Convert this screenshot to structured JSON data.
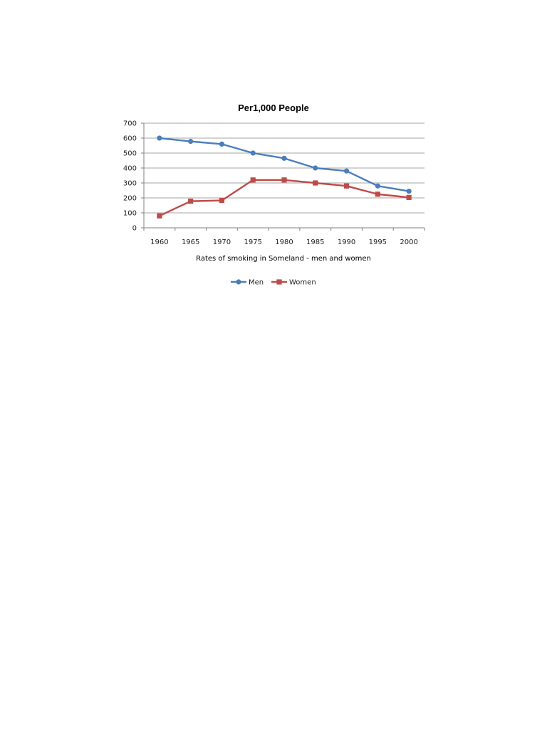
{
  "chart_data": {
    "type": "line",
    "title": "Per1,000 People",
    "xlabel": "Rates of smoking in Someland - men and women",
    "ylabel": "",
    "categories": [
      "1960",
      "1965",
      "1970",
      "1975",
      "1980",
      "1985",
      "1990",
      "1995",
      "2000"
    ],
    "ylim": [
      0,
      700
    ],
    "yticks": [
      0,
      100,
      200,
      300,
      400,
      500,
      600,
      700
    ],
    "grid": true,
    "legend_position": "bottom",
    "series": [
      {
        "name": "Men",
        "color": "#4a7ebb",
        "marker": "circle",
        "values": [
          600,
          578,
          560,
          500,
          465,
          400,
          380,
          280,
          245
        ]
      },
      {
        "name": "Women",
        "color": "#be4b48",
        "marker": "square",
        "values": [
          80,
          178,
          183,
          320,
          320,
          300,
          280,
          225,
          203
        ]
      }
    ]
  }
}
